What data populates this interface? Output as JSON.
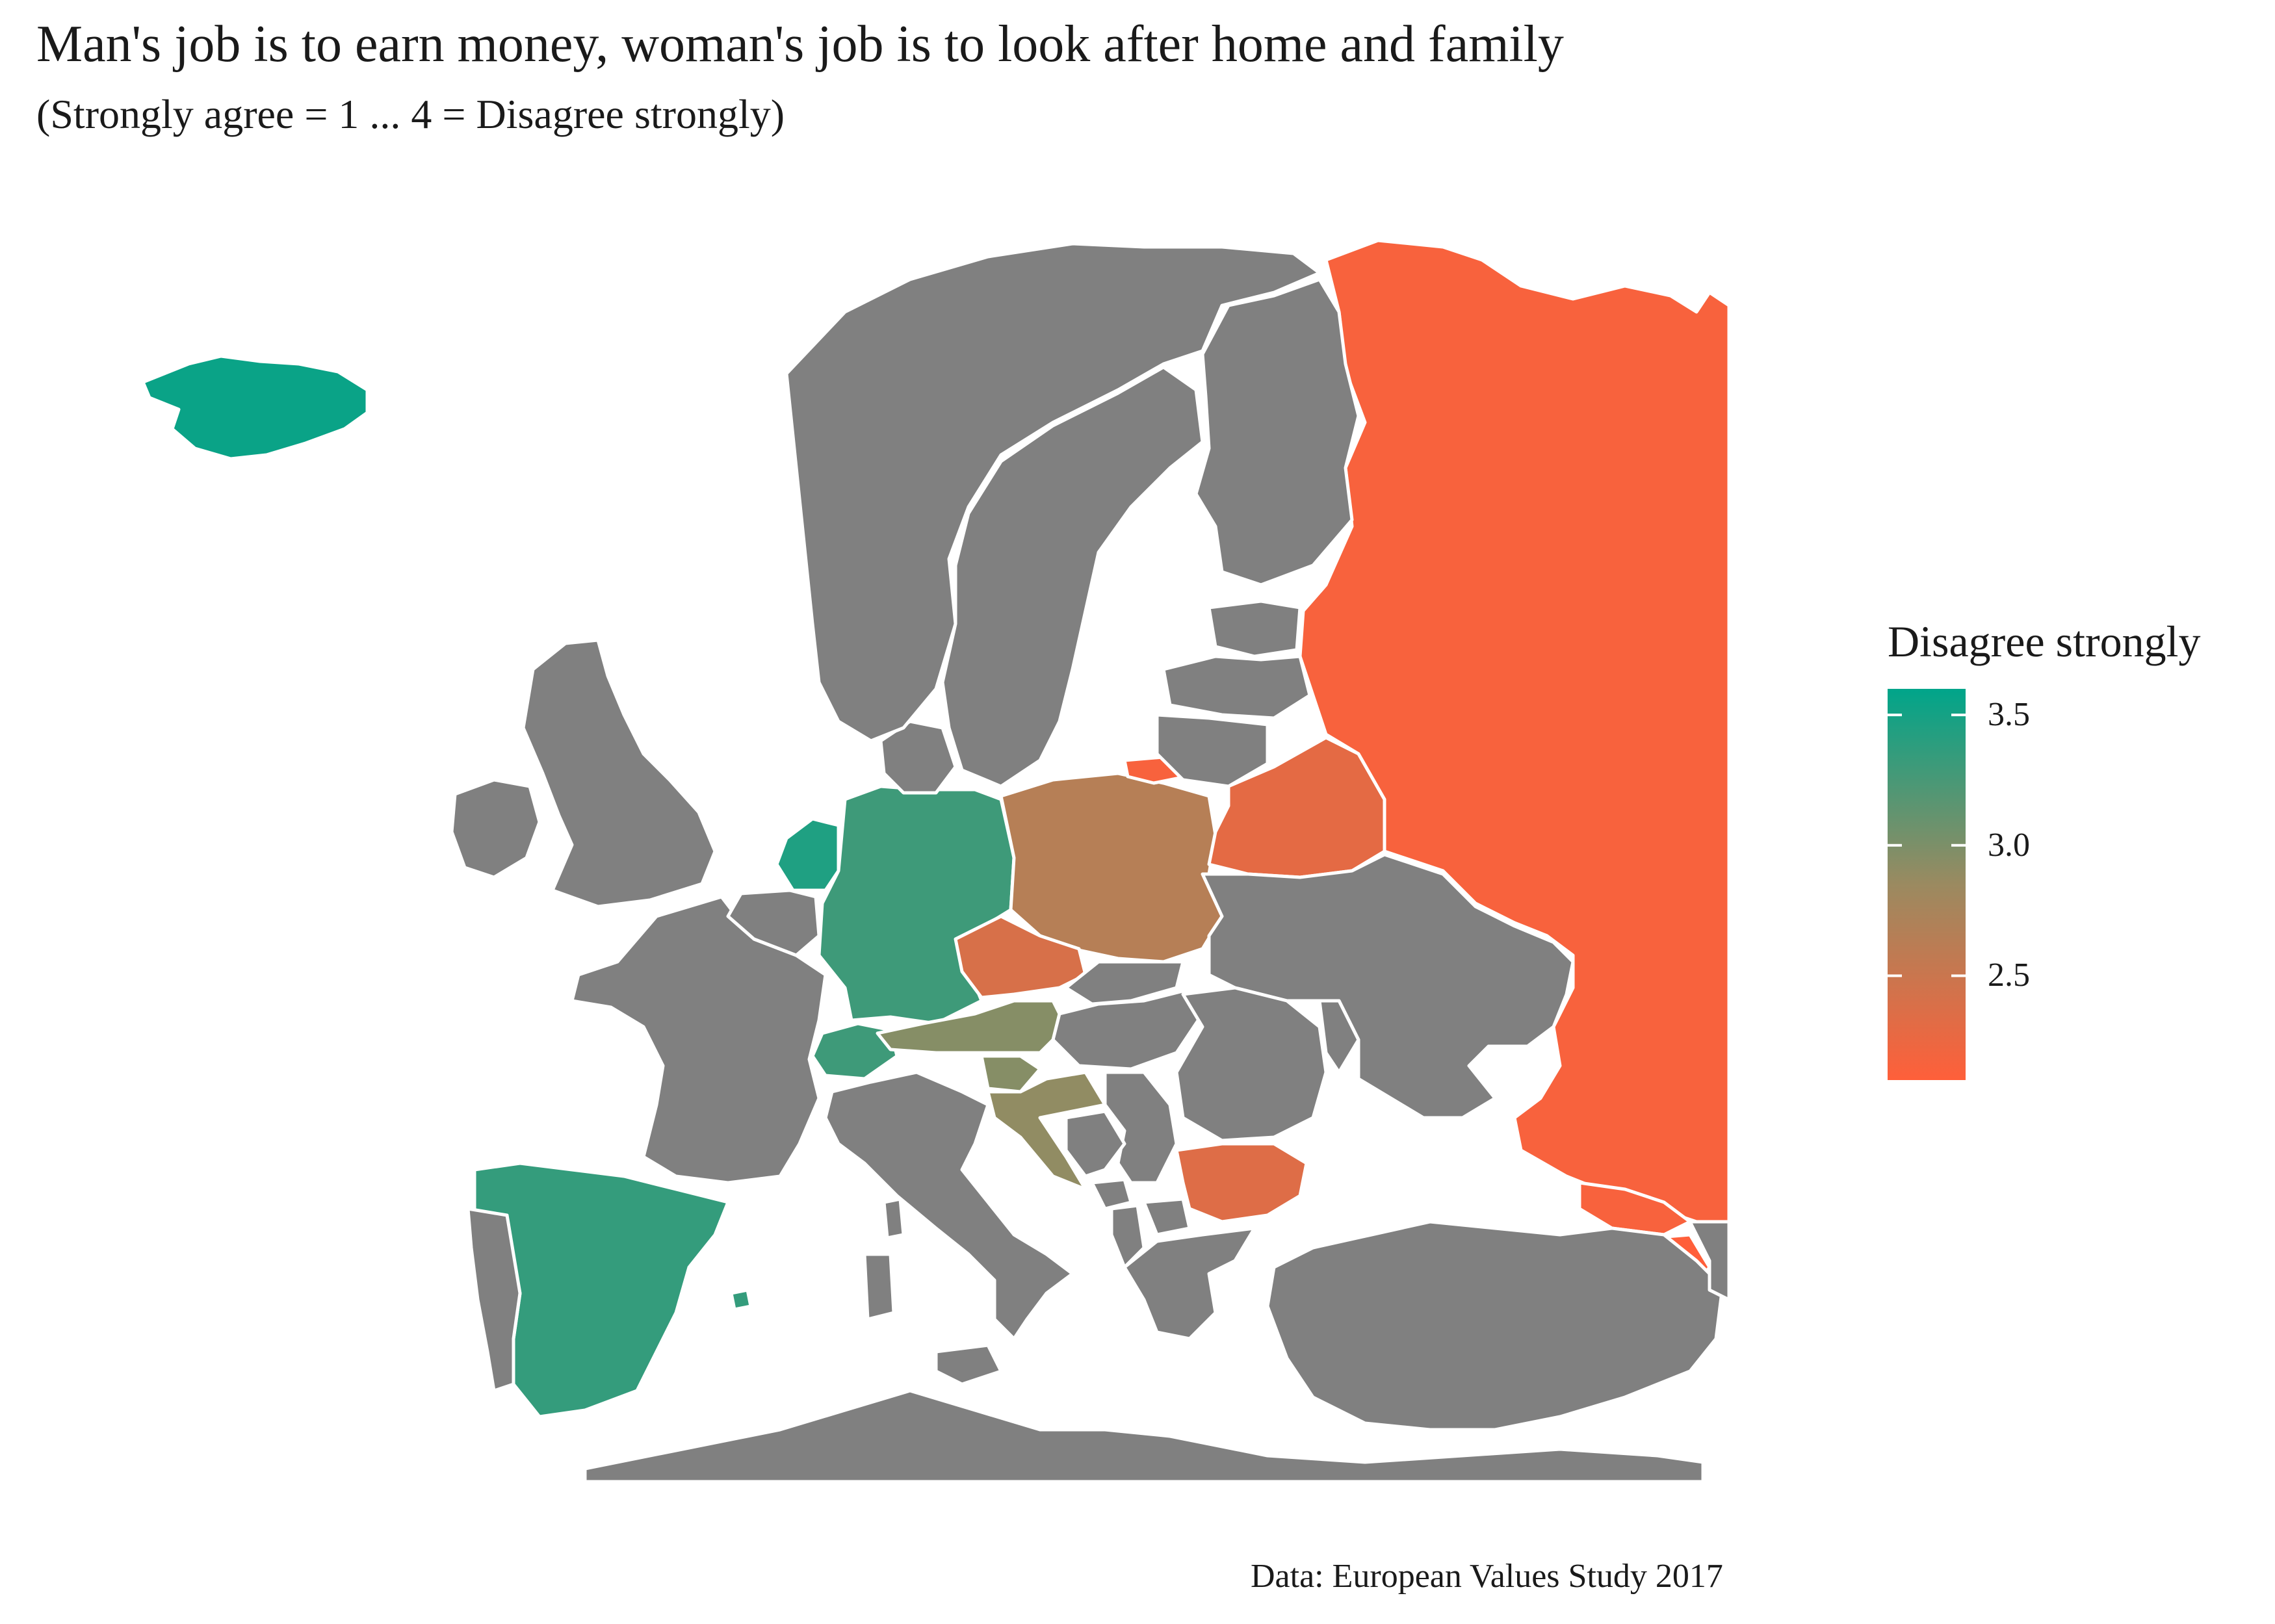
{
  "title": "Man's job is to earn money, woman's job is to look after home and family",
  "subtitle": "(Strongly agree = 1 ... 4 = Disagree strongly)",
  "caption": "Data: European Values Study 2017",
  "legend": {
    "title": "Disagree strongly",
    "ticks": [
      {
        "label": "3.5",
        "value": 3.5
      },
      {
        "label": "3.0",
        "value": 3.0
      },
      {
        "label": "2.5",
        "value": 2.5
      }
    ],
    "range": [
      2.1,
      3.6
    ],
    "colors": {
      "high": "#00a58a",
      "mid": "#9b8a60",
      "low": "#ff5f3a"
    }
  },
  "colors": {
    "no_data": "#808080",
    "border": "#ffffff",
    "sea": "#ffffff"
  },
  "regions": [
    {
      "name": "Iceland",
      "value": 3.55
    },
    {
      "name": "Netherlands",
      "value": 3.45
    },
    {
      "name": "Spain",
      "value": 3.35
    },
    {
      "name": "Germany",
      "value": 3.3
    },
    {
      "name": "Switzerland",
      "value": 3.3
    },
    {
      "name": "Austria",
      "value": 2.95
    },
    {
      "name": "Slovenia",
      "value": 2.95
    },
    {
      "name": "Croatia",
      "value": 2.9
    },
    {
      "name": "Poland",
      "value": 2.65
    },
    {
      "name": "Czech Republic",
      "value": 2.4
    },
    {
      "name": "Bulgaria",
      "value": 2.35
    },
    {
      "name": "Belarus",
      "value": 2.3
    },
    {
      "name": "Russia",
      "value": 2.15
    },
    {
      "name": "Georgia",
      "value": 2.15
    },
    {
      "name": "Armenia",
      "value": 2.1
    },
    {
      "name": "Kaliningrad",
      "value": 2.15
    },
    {
      "name": "Mallorca",
      "value": 3.35
    },
    {
      "name": "United Kingdom",
      "value": null
    },
    {
      "name": "Ireland",
      "value": null
    },
    {
      "name": "France",
      "value": null
    },
    {
      "name": "Portugal",
      "value": null
    },
    {
      "name": "Italy",
      "value": null
    },
    {
      "name": "Sardinia",
      "value": null
    },
    {
      "name": "Corsica",
      "value": null
    },
    {
      "name": "Sicily",
      "value": null
    },
    {
      "name": "Belgium",
      "value": null
    },
    {
      "name": "Denmark",
      "value": null
    },
    {
      "name": "Norway",
      "value": null
    },
    {
      "name": "Sweden",
      "value": null
    },
    {
      "name": "Finland",
      "value": null
    },
    {
      "name": "Estonia",
      "value": null
    },
    {
      "name": "Latvia",
      "value": null
    },
    {
      "name": "Lithuania",
      "value": null
    },
    {
      "name": "Ukraine",
      "value": null
    },
    {
      "name": "Slovakia",
      "value": null
    },
    {
      "name": "Hungary",
      "value": null
    },
    {
      "name": "Romania",
      "value": null
    },
    {
      "name": "Moldova",
      "value": null
    },
    {
      "name": "Serbia",
      "value": null
    },
    {
      "name": "Bosnia and Herzegovina",
      "value": null
    },
    {
      "name": "Montenegro",
      "value": null
    },
    {
      "name": "Albania",
      "value": null
    },
    {
      "name": "North Macedonia",
      "value": null
    },
    {
      "name": "Greece",
      "value": null
    },
    {
      "name": "Turkey",
      "value": null
    },
    {
      "name": "North Africa",
      "value": null
    },
    {
      "name": "Azerbaijan",
      "value": null
    }
  ]
}
